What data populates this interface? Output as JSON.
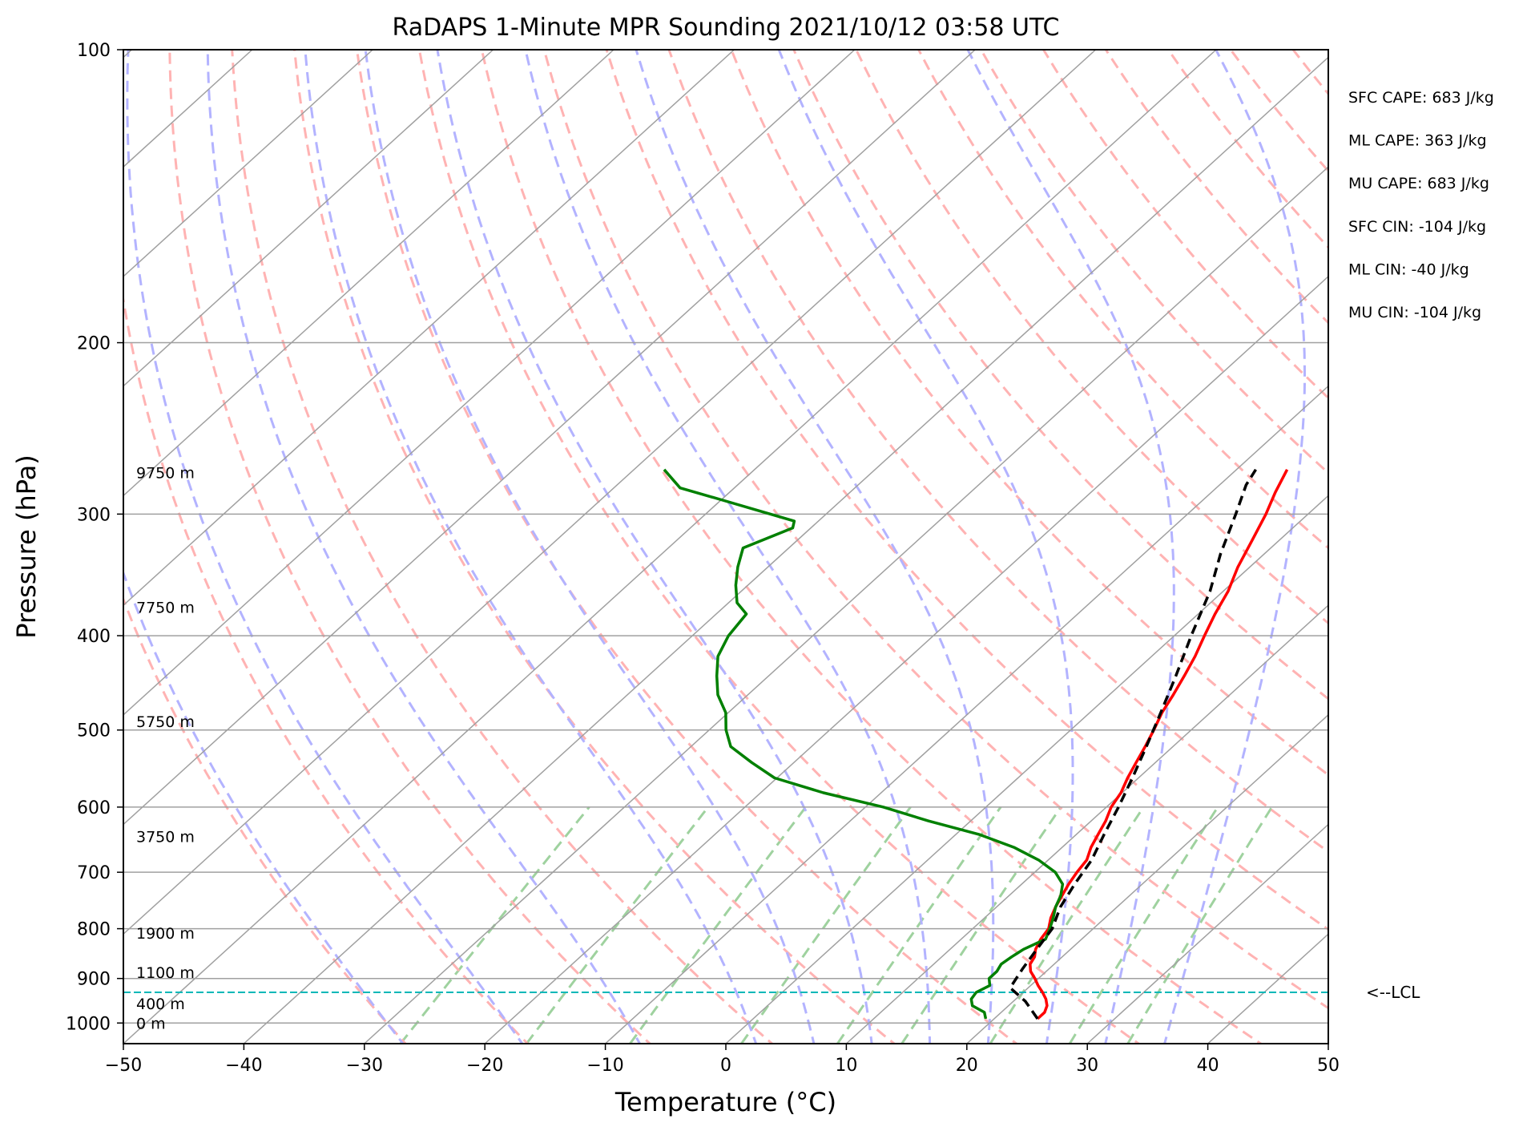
{
  "chart_data": {
    "type": "line",
    "subtype": "skew-t log-p",
    "title": "RaDAPS 1-Minute MPR Sounding 2021/10/12 03:58 UTC",
    "xlabel": "Temperature (°C)",
    "ylabel": "Pressure (hPa)",
    "xlim": [
      -50,
      50
    ],
    "ylim": [
      1050,
      100
    ],
    "y_scale": "log",
    "grid": true,
    "x_ticks": [
      -50,
      -40,
      -30,
      -20,
      -10,
      0,
      10,
      20,
      30,
      40,
      50
    ],
    "x_tick_labels": [
      "−50",
      "−40",
      "−30",
      "−20",
      "−10",
      "0",
      "10",
      "20",
      "30",
      "40",
      "50"
    ],
    "y_ticks": [
      1000,
      900,
      800,
      700,
      600,
      500,
      400,
      300,
      200,
      100
    ],
    "y_tick_labels": [
      "1000",
      "900",
      "800",
      "700",
      "600",
      "500",
      "400",
      "300",
      "200",
      "100"
    ],
    "series": [
      {
        "color": "#ff0000",
        "style": "solid",
        "points": [
          [
            23.6,
            990
          ],
          [
            23.6,
            975
          ],
          [
            23.2,
            960
          ],
          [
            22.5,
            945
          ],
          [
            21.6,
            930
          ],
          [
            20.6,
            915
          ],
          [
            19.7,
            900
          ],
          [
            18.7,
            885
          ],
          [
            18.0,
            870
          ],
          [
            17.7,
            855
          ],
          [
            17.1,
            840
          ],
          [
            16.6,
            820
          ],
          [
            16.3,
            800
          ],
          [
            15.5,
            780
          ],
          [
            14.9,
            760
          ],
          [
            14.4,
            740
          ],
          [
            13.9,
            720
          ],
          [
            13.5,
            700
          ],
          [
            13.2,
            680
          ],
          [
            12.4,
            660
          ],
          [
            11.8,
            640
          ],
          [
            11.2,
            620
          ],
          [
            10.4,
            600
          ],
          [
            9.9,
            580
          ],
          [
            9.1,
            560
          ],
          [
            8.4,
            540
          ],
          [
            7.7,
            520
          ],
          [
            6.9,
            500
          ],
          [
            6.0,
            480
          ],
          [
            5.3,
            460
          ],
          [
            4.5,
            440
          ],
          [
            3.6,
            420
          ],
          [
            2.5,
            400
          ],
          [
            1.4,
            380
          ],
          [
            0.4,
            360
          ],
          [
            -1.0,
            340
          ],
          [
            -2.2,
            320
          ],
          [
            -3.5,
            300
          ],
          [
            -4.7,
            285
          ],
          [
            -5.8,
            270
          ]
        ]
      },
      {
        "color": "#008000",
        "style": "solid",
        "points": [
          [
            19.3,
            990
          ],
          [
            18.6,
            975
          ],
          [
            17.0,
            960
          ],
          [
            16.3,
            945
          ],
          [
            16.1,
            930
          ],
          [
            16.6,
            915
          ],
          [
            15.9,
            900
          ],
          [
            15.9,
            885
          ],
          [
            15.6,
            870
          ],
          [
            15.8,
            855
          ],
          [
            16.1,
            840
          ],
          [
            17.0,
            820
          ],
          [
            16.4,
            800
          ],
          [
            15.7,
            780
          ],
          [
            14.9,
            760
          ],
          [
            14.3,
            740
          ],
          [
            13.4,
            720
          ],
          [
            11.7,
            700
          ],
          [
            9.2,
            680
          ],
          [
            6.0,
            660
          ],
          [
            1.9,
            640
          ],
          [
            -3.5,
            620
          ],
          [
            -8.5,
            600
          ],
          [
            -14.8,
            580
          ],
          [
            -20.2,
            560
          ],
          [
            -23.5,
            540
          ],
          [
            -26.7,
            520
          ],
          [
            -28.6,
            500
          ],
          [
            -30.2,
            480
          ],
          [
            -32.5,
            460
          ],
          [
            -34.3,
            440
          ],
          [
            -36.0,
            420
          ],
          [
            -37.0,
            400
          ],
          [
            -37.5,
            380
          ],
          [
            -39.3,
            370
          ],
          [
            -41.0,
            355
          ],
          [
            -42.5,
            340
          ],
          [
            -43.8,
            325
          ],
          [
            -41.5,
            310
          ],
          [
            -42.0,
            305
          ],
          [
            -50.0,
            290
          ],
          [
            -54.5,
            282
          ],
          [
            -57.5,
            270
          ]
        ]
      },
      {
        "color": "#000000",
        "style": "dashed",
        "points": [
          [
            23.6,
            990
          ],
          [
            21.0,
            950
          ],
          [
            18.5,
            920
          ],
          [
            17.8,
            880
          ],
          [
            17.2,
            840
          ],
          [
            16.6,
            800
          ],
          [
            15.3,
            760
          ],
          [
            14.4,
            720
          ],
          [
            13.6,
            680
          ],
          [
            12.3,
            640
          ],
          [
            11.0,
            600
          ],
          [
            9.5,
            560
          ],
          [
            7.8,
            520
          ],
          [
            5.9,
            480
          ],
          [
            3.8,
            440
          ],
          [
            1.4,
            400
          ],
          [
            -1.1,
            360
          ],
          [
            -3.6,
            330
          ],
          [
            -6.0,
            300
          ],
          [
            -7.8,
            280
          ],
          [
            -8.4,
            270
          ]
        ]
      }
    ],
    "lcl_pressure": 930,
    "lcl_label": "<--LCL",
    "height_labels": [
      {
        "text": "0 m",
        "pressure": 1000
      },
      {
        "text": "400 m",
        "pressure": 955
      },
      {
        "text": "1100 m",
        "pressure": 887
      },
      {
        "text": "1900 m",
        "pressure": 808
      },
      {
        "text": "3750 m",
        "pressure": 643
      },
      {
        "text": "5750 m",
        "pressure": 490
      },
      {
        "text": "7750 m",
        "pressure": 374
      },
      {
        "text": "9750 m",
        "pressure": 272
      }
    ],
    "indices": [
      "SFC CAPE: 683 J/kg",
      "ML CAPE: 363 J/kg",
      "MU CAPE: 683 J/kg",
      "SFC CIN: -104 J/kg",
      "ML CIN: -40 J/kg",
      "MU CIN: -104 J/kg"
    ],
    "isotherms_c": [
      -150,
      -140,
      -130,
      -120,
      -110,
      -100,
      -90,
      -80,
      -70,
      -60,
      -50,
      -40,
      -30,
      -20,
      -10,
      0,
      10,
      20,
      30,
      40,
      50
    ],
    "dry_adiabats_c": [
      -30,
      -20,
      -10,
      0,
      10,
      20,
      30,
      40,
      50,
      60,
      70,
      80,
      90,
      100,
      110,
      120,
      130,
      140,
      150,
      160,
      170,
      180,
      190,
      200
    ],
    "moist_adiabats_c": [
      -30,
      -20,
      -10,
      0,
      5,
      10,
      15,
      20,
      25,
      30,
      35
    ],
    "mixing_ratio_lines_gkg": [
      0.4,
      1,
      2,
      4,
      7,
      10,
      16,
      24,
      32
    ],
    "colors": {
      "temperature": "#ff0000",
      "dewpoint": "#008000",
      "parcel": "#000000",
      "lcl": "#00b8b8",
      "dry_adiabat": "#ffb3b3",
      "moist_adiabat": "#b3b3ff",
      "mixing_ratio": "#9fd29f",
      "isotherm": "#a0a0a0",
      "isobar": "#a0a0a0"
    }
  }
}
